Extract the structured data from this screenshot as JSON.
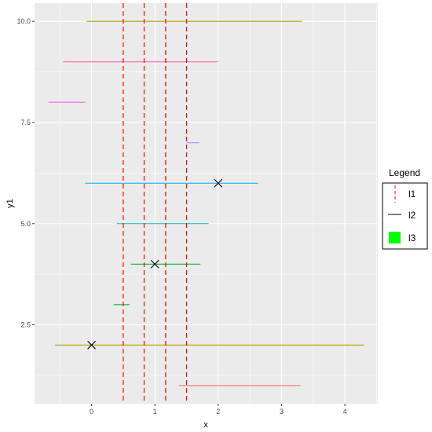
{
  "chart_data": {
    "type": "scatter",
    "xlabel": "x",
    "ylabel": "y1",
    "xlim": [
      -0.9,
      4.52
    ],
    "ylim": [
      0.55,
      10.45
    ],
    "x_ticks": [
      0,
      1,
      2,
      3,
      4
    ],
    "y_ticks": [
      2.5,
      5.0,
      7.5,
      10.0
    ],
    "y_tick_labels": [
      "2.5",
      "5.0",
      "7.5",
      "10.0"
    ],
    "grid": true,
    "panel_background": "#EBEBEB",
    "segments": [
      {
        "y": 1,
        "x_start": 1.38,
        "x_end": 3.3,
        "color": "#F8766D"
      },
      {
        "y": 2,
        "x_start": -0.58,
        "x_end": 4.3,
        "color": "#B79F00"
      },
      {
        "y": 3,
        "x_start": 0.35,
        "x_end": 0.6,
        "color": "#00BA38"
      },
      {
        "y": 4,
        "x_start": 0.62,
        "x_end": 1.72,
        "color": "#00BA38"
      },
      {
        "y": 5,
        "x_start": 0.4,
        "x_end": 1.85,
        "color": "#00BFC4"
      },
      {
        "y": 6,
        "x_start": -0.1,
        "x_end": 2.63,
        "color": "#00A9FF"
      },
      {
        "y": 7,
        "x_start": 1.5,
        "x_end": 1.7,
        "color": "#C77CFF"
      },
      {
        "y": 8,
        "x_start": -0.68,
        "x_end": -0.1,
        "color": "#F564E3"
      },
      {
        "y": 9,
        "x_start": -0.45,
        "x_end": 2.0,
        "color": "#FF64B0"
      },
      {
        "y": 10,
        "x_start": -0.08,
        "x_end": 3.32,
        "color": "#B79F00"
      }
    ],
    "points": [
      {
        "x": 0,
        "y": 2
      },
      {
        "x": 1,
        "y": 4
      },
      {
        "x": 2,
        "y": 6
      }
    ],
    "point_shape": "x",
    "vlines": [
      0.5,
      0.83,
      1.17,
      1.5
    ],
    "vline_color": "#FF0000",
    "vline_style": "dashed",
    "legend": {
      "title": "Legend",
      "position": "right",
      "entries": [
        {
          "label": "l1",
          "key": "dashed-line",
          "color": "#FF0000"
        },
        {
          "label": "l2",
          "key": "solid-line",
          "color": "#000000"
        },
        {
          "label": "l3",
          "key": "filled-square",
          "color": "#00FF00"
        }
      ]
    }
  }
}
